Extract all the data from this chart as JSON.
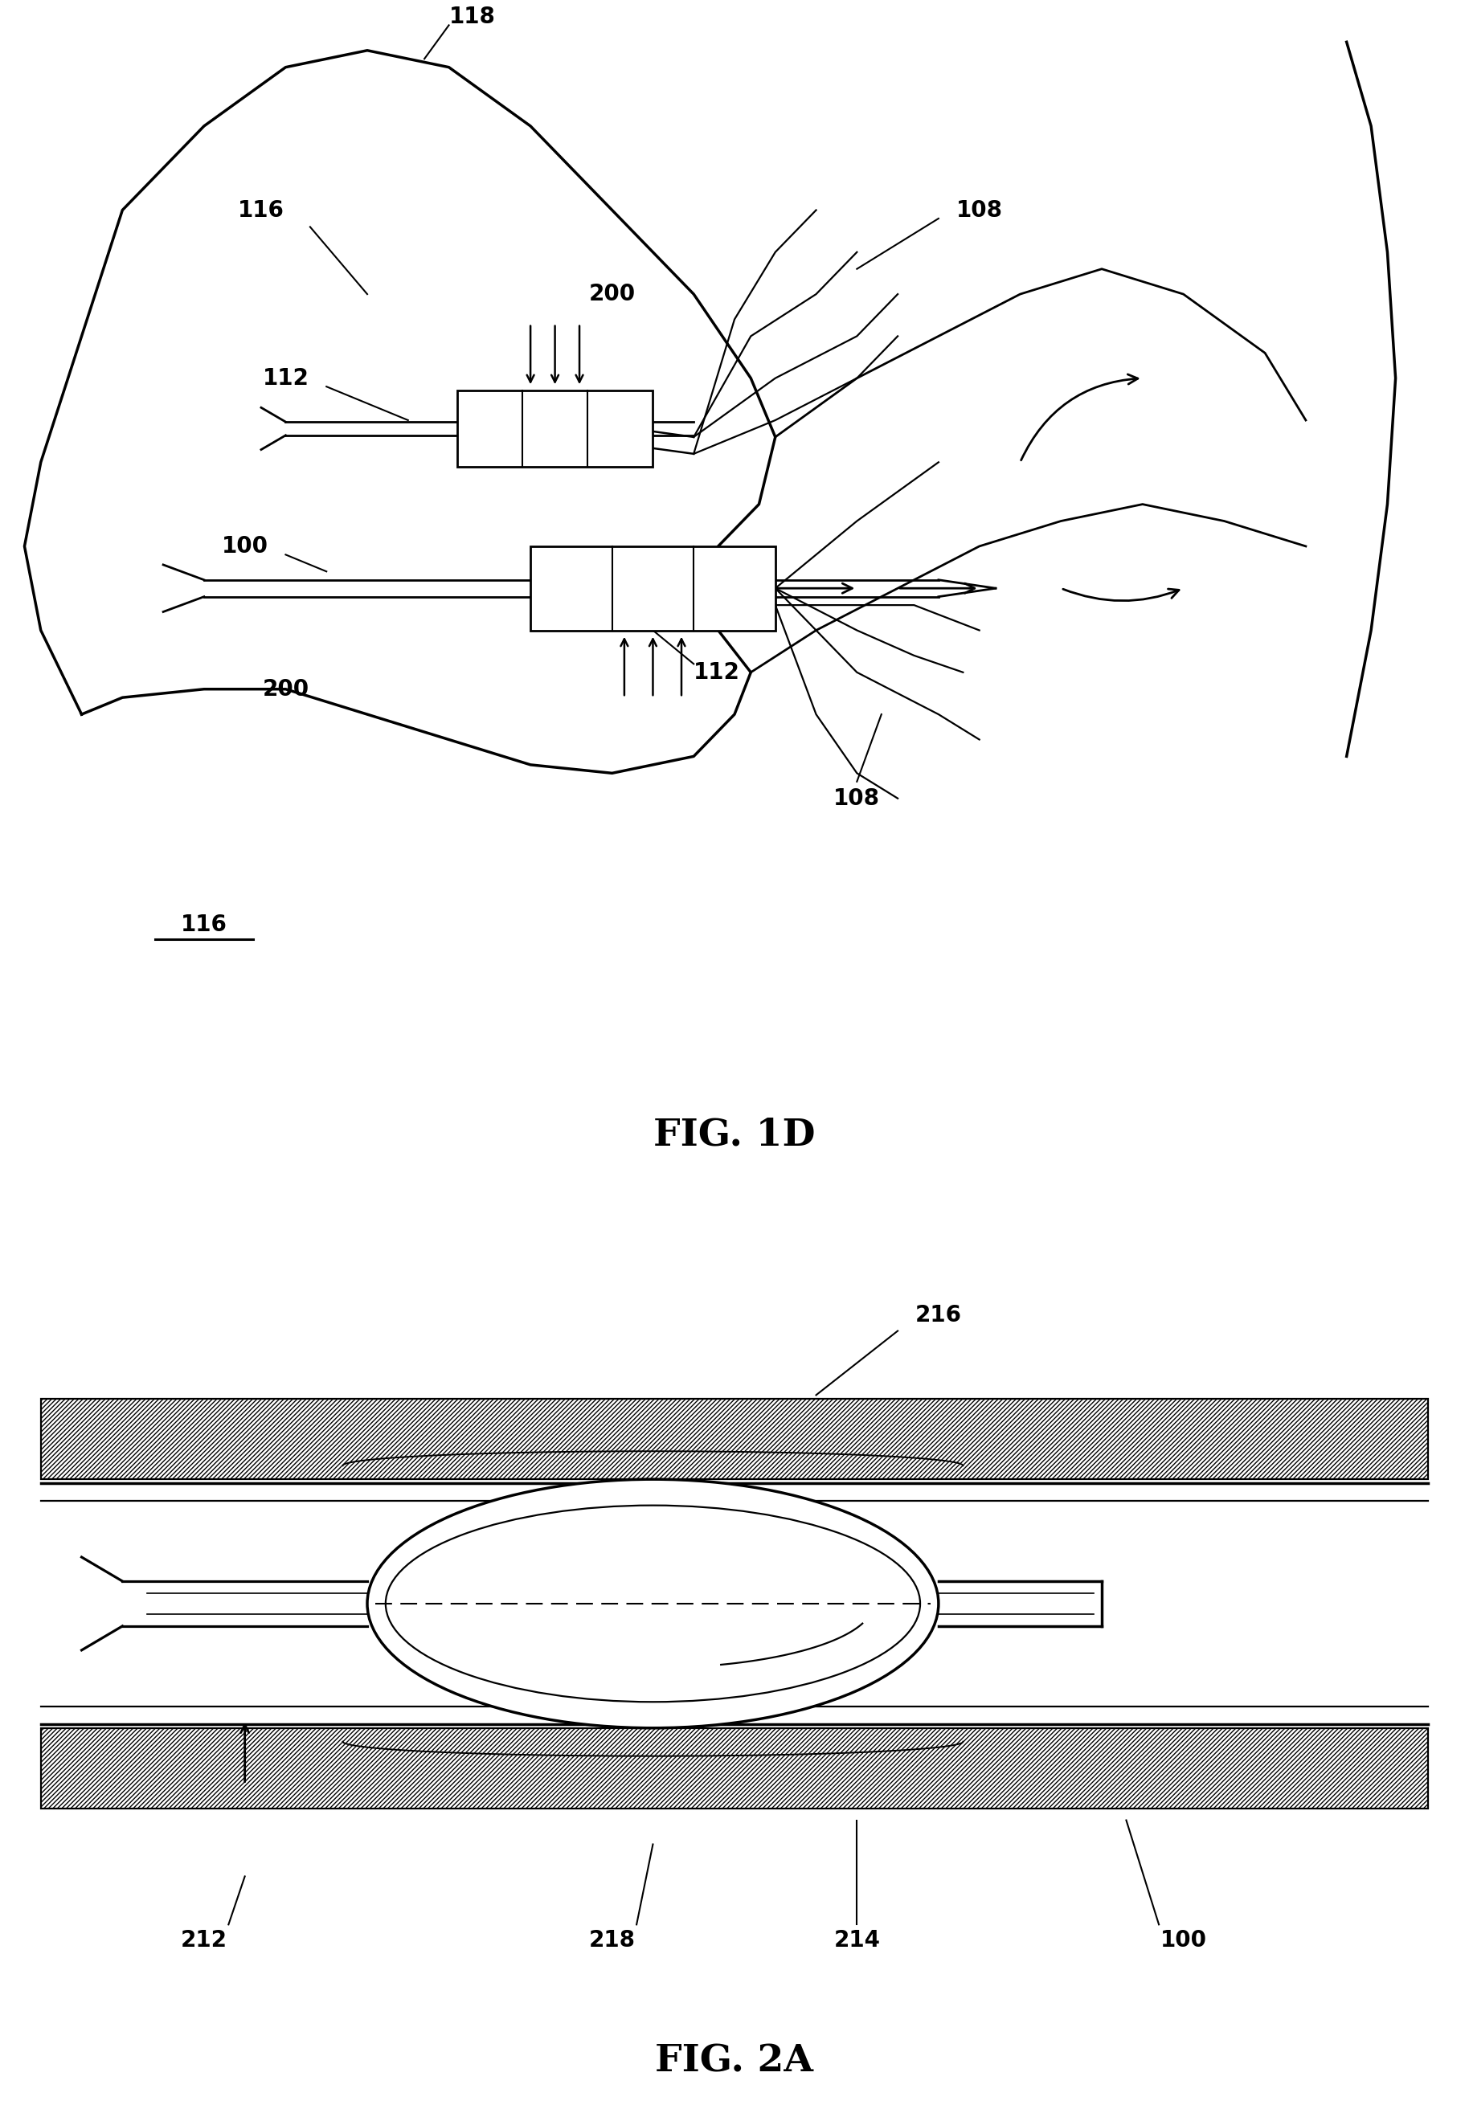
{
  "bg_color": "#ffffff",
  "line_color": "#000000",
  "fig1d_title": "FIG. 1D",
  "fig2a_title": "FIG. 2A",
  "label_fontsize": 20,
  "title_fontsize": 34
}
